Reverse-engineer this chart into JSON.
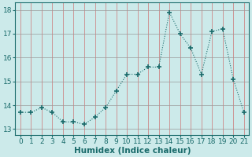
{
  "x": [
    0,
    1,
    2,
    3,
    4,
    5,
    6,
    7,
    8,
    9,
    10,
    11,
    12,
    13,
    14,
    15,
    16,
    17,
    18,
    19,
    20,
    21
  ],
  "y": [
    13.7,
    13.7,
    13.9,
    13.7,
    13.3,
    13.3,
    13.2,
    13.5,
    13.9,
    14.6,
    15.3,
    15.3,
    15.6,
    15.6,
    17.9,
    17.0,
    16.4,
    15.3,
    17.1,
    17.2,
    15.1,
    13.7
  ],
  "line_color": "#1a6b6b",
  "marker": "+",
  "marker_size": 4,
  "marker_lw": 1.2,
  "bg_color": "#cceaea",
  "grid_color_major": "#b0b0b0",
  "grid_color_minor": "#ddbbbb",
  "xlabel": "Humidex (Indice chaleur)",
  "xlim": [
    -0.5,
    21.5
  ],
  "ylim": [
    12.75,
    18.3
  ],
  "yticks": [
    13,
    14,
    15,
    16,
    17,
    18
  ],
  "xticks": [
    0,
    1,
    2,
    3,
    4,
    5,
    6,
    7,
    8,
    9,
    10,
    11,
    12,
    13,
    14,
    15,
    16,
    17,
    18,
    19,
    20,
    21
  ],
  "xlabel_fontsize": 7.5,
  "tick_fontsize": 6.5,
  "fig_w": 3.2,
  "fig_h": 2.0,
  "dpi": 100
}
